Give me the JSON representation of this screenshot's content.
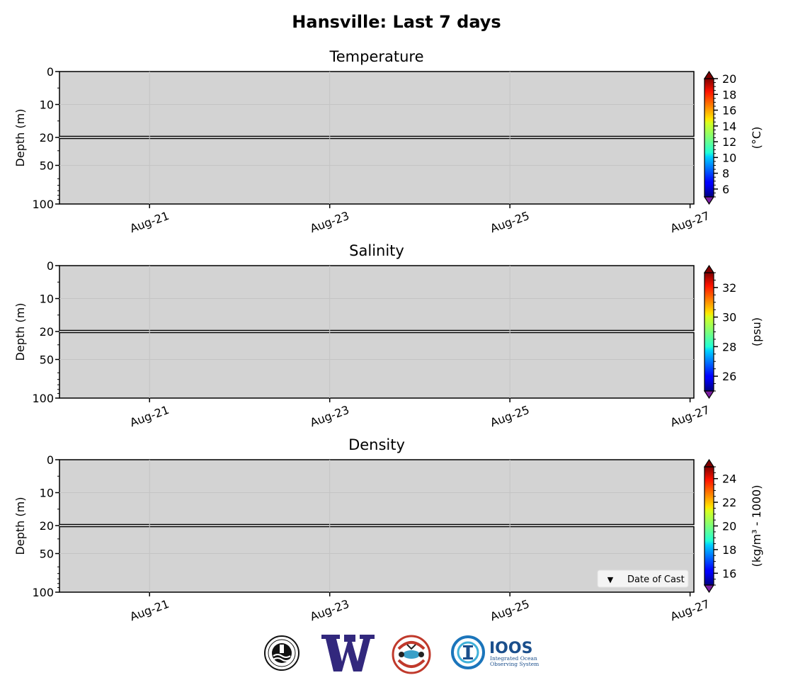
{
  "figure": {
    "title": "Hansville: Last 7 days"
  },
  "chart_data": [
    {
      "type": "heatmap",
      "title": "Temperature",
      "ylabel": "Depth (m)",
      "x_ticks": [
        "Aug-21",
        "Aug-23",
        "Aug-25",
        "Aug-27"
      ],
      "y_ticks": [
        "0",
        "10",
        "20",
        "50",
        "100"
      ],
      "colorbar": {
        "label": "(°C)",
        "ticks": [
          "6",
          "8",
          "10",
          "12",
          "14",
          "16",
          "18",
          "20"
        ],
        "range": [
          5,
          20
        ]
      },
      "values": [],
      "background_color": "#d3d3d3",
      "grid": true
    },
    {
      "type": "heatmap",
      "title": "Salinity",
      "ylabel": "Depth (m)",
      "x_ticks": [
        "Aug-21",
        "Aug-23",
        "Aug-25",
        "Aug-27"
      ],
      "y_ticks": [
        "0",
        "10",
        "20",
        "50",
        "100"
      ],
      "colorbar": {
        "label": "(psu)",
        "ticks": [
          "26",
          "28",
          "30",
          "32"
        ],
        "range": [
          25,
          33
        ]
      },
      "values": [],
      "background_color": "#d3d3d3",
      "grid": true
    },
    {
      "type": "heatmap",
      "title": "Density",
      "ylabel": "Depth (m)",
      "x_ticks": [
        "Aug-21",
        "Aug-23",
        "Aug-25",
        "Aug-27"
      ],
      "y_ticks": [
        "0",
        "10",
        "20",
        "50",
        "100"
      ],
      "colorbar": {
        "label": "(kg/m³ - 1000)",
        "ticks": [
          "16",
          "18",
          "20",
          "22",
          "24"
        ],
        "range": [
          15,
          25
        ]
      },
      "legend": {
        "label": "Date of Cast",
        "marker": "▼",
        "placement": "lower-right"
      },
      "values": [],
      "background_color": "#d3d3d3",
      "grid": true
    }
  ],
  "logos": [
    {
      "name": "uw-apl-seal-logo",
      "icon": "seal"
    },
    {
      "name": "uw-w-logo",
      "icon": "W"
    },
    {
      "name": "nanoos-logo",
      "icon": "salmon-circle"
    },
    {
      "name": "ioos-logo",
      "icon": "ioos",
      "text": "IOOS",
      "subtext": [
        "Integrated Ocean",
        "Observing System"
      ]
    }
  ],
  "colors": {
    "panel_bg": "#d3d3d3",
    "uw_purple": "#32287d",
    "ioos_blue": "#1b75bb",
    "nanoos_red": "#c0392b"
  }
}
